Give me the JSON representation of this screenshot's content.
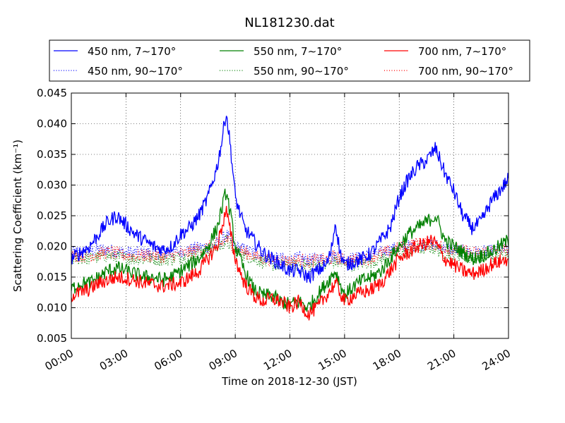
{
  "chart_data": {
    "type": "line",
    "title": "NL181230.dat",
    "xlabel": "Time on 2018-12-30 (JST)",
    "ylabel": "Scattering Coefficient (km⁻¹)",
    "xlim": [
      0,
      24
    ],
    "ylim": [
      0.005,
      0.045
    ],
    "xticks": [
      0,
      3,
      6,
      9,
      12,
      15,
      18,
      21,
      24
    ],
    "xtick_labels": [
      "00:00",
      "03:00",
      "06:00",
      "09:00",
      "12:00",
      "15:00",
      "18:00",
      "21:00",
      "24:00"
    ],
    "yticks": [
      0.005,
      0.01,
      0.015,
      0.02,
      0.025,
      0.03,
      0.035,
      0.04,
      0.045
    ],
    "ytick_labels": [
      "0.005",
      "0.010",
      "0.015",
      "0.020",
      "0.025",
      "0.030",
      "0.035",
      "0.040",
      "0.045"
    ],
    "grid": true,
    "legend_position": "top",
    "x": [
      0,
      0.5,
      1,
      1.5,
      2,
      2.5,
      3,
      3.5,
      4,
      4.5,
      5,
      5.5,
      6,
      6.5,
      7,
      7.5,
      8,
      8.25,
      8.5,
      8.75,
      9,
      9.5,
      10,
      10.5,
      11,
      11.5,
      12,
      12.5,
      13,
      13.5,
      14,
      14.25,
      14.5,
      14.75,
      15,
      15.5,
      16,
      16.5,
      17,
      17.5,
      18,
      18.5,
      19,
      19.5,
      19.75,
      20,
      20.5,
      21,
      21.5,
      22,
      22.5,
      23,
      23.5,
      24
    ],
    "series": [
      {
        "name": "450 nm, 7∼170°",
        "color": "#0000ff",
        "dash": "solid",
        "values": [
          0.018,
          0.019,
          0.02,
          0.022,
          0.024,
          0.025,
          0.0235,
          0.022,
          0.021,
          0.02,
          0.0195,
          0.02,
          0.022,
          0.023,
          0.025,
          0.028,
          0.033,
          0.037,
          0.042,
          0.036,
          0.028,
          0.023,
          0.021,
          0.019,
          0.018,
          0.017,
          0.016,
          0.016,
          0.015,
          0.016,
          0.017,
          0.019,
          0.024,
          0.019,
          0.017,
          0.0175,
          0.018,
          0.019,
          0.021,
          0.023,
          0.028,
          0.031,
          0.033,
          0.034,
          0.035,
          0.036,
          0.032,
          0.029,
          0.025,
          0.023,
          0.024,
          0.027,
          0.029,
          0.031
        ]
      },
      {
        "name": "450 nm, 90∼170°",
        "color": "#0000ff",
        "dash": "dotted",
        "values": [
          0.019,
          0.019,
          0.0192,
          0.0195,
          0.0195,
          0.0192,
          0.019,
          0.019,
          0.019,
          0.019,
          0.0188,
          0.019,
          0.0192,
          0.0195,
          0.0198,
          0.02,
          0.0205,
          0.021,
          0.022,
          0.021,
          0.02,
          0.0195,
          0.019,
          0.0185,
          0.018,
          0.018,
          0.0178,
          0.018,
          0.0178,
          0.018,
          0.018,
          0.0182,
          0.0185,
          0.018,
          0.018,
          0.018,
          0.0182,
          0.0185,
          0.019,
          0.0195,
          0.0198,
          0.02,
          0.0202,
          0.0205,
          0.0205,
          0.0202,
          0.0198,
          0.0195,
          0.0192,
          0.019,
          0.019,
          0.0192,
          0.0195,
          0.0195
        ]
      },
      {
        "name": "550 nm, 7∼170°",
        "color": "#008000",
        "dash": "solid",
        "values": [
          0.013,
          0.014,
          0.014,
          0.015,
          0.016,
          0.0165,
          0.016,
          0.0155,
          0.015,
          0.015,
          0.0145,
          0.015,
          0.016,
          0.017,
          0.018,
          0.02,
          0.023,
          0.026,
          0.029,
          0.025,
          0.02,
          0.016,
          0.013,
          0.012,
          0.012,
          0.011,
          0.0105,
          0.011,
          0.01,
          0.012,
          0.014,
          0.015,
          0.016,
          0.014,
          0.012,
          0.0135,
          0.0145,
          0.015,
          0.016,
          0.018,
          0.02,
          0.022,
          0.023,
          0.024,
          0.0245,
          0.025,
          0.021,
          0.02,
          0.019,
          0.018,
          0.0185,
          0.019,
          0.02,
          0.021
        ]
      },
      {
        "name": "550 nm, 90∼170°",
        "color": "#008000",
        "dash": "dotted",
        "values": [
          0.018,
          0.018,
          0.018,
          0.0182,
          0.0185,
          0.0182,
          0.018,
          0.018,
          0.018,
          0.018,
          0.0178,
          0.018,
          0.0182,
          0.0185,
          0.0188,
          0.0192,
          0.0198,
          0.0202,
          0.021,
          0.02,
          0.019,
          0.0185,
          0.018,
          0.0175,
          0.017,
          0.017,
          0.0168,
          0.017,
          0.0168,
          0.017,
          0.017,
          0.0172,
          0.0175,
          0.0172,
          0.017,
          0.017,
          0.0172,
          0.0175,
          0.018,
          0.0185,
          0.019,
          0.0192,
          0.0195,
          0.0198,
          0.0198,
          0.0195,
          0.019,
          0.0188,
          0.0185,
          0.0182,
          0.0182,
          0.0185,
          0.0188,
          0.019
        ]
      },
      {
        "name": "700 nm, 7∼170°",
        "color": "#ff0000",
        "dash": "solid",
        "values": [
          0.012,
          0.0125,
          0.013,
          0.014,
          0.0145,
          0.015,
          0.0148,
          0.0145,
          0.014,
          0.0138,
          0.0135,
          0.0138,
          0.014,
          0.015,
          0.016,
          0.018,
          0.02,
          0.023,
          0.026,
          0.022,
          0.018,
          0.014,
          0.012,
          0.011,
          0.0115,
          0.011,
          0.01,
          0.011,
          0.009,
          0.01,
          0.012,
          0.013,
          0.014,
          0.0125,
          0.011,
          0.012,
          0.0125,
          0.013,
          0.014,
          0.016,
          0.018,
          0.019,
          0.02,
          0.0205,
          0.021,
          0.0205,
          0.018,
          0.017,
          0.016,
          0.0155,
          0.016,
          0.017,
          0.0175,
          0.018
        ]
      },
      {
        "name": "700 nm, 90∼170°",
        "color": "#ff0000",
        "dash": "dotted",
        "values": [
          0.0185,
          0.0185,
          0.0185,
          0.0188,
          0.019,
          0.0188,
          0.0185,
          0.0185,
          0.0185,
          0.0185,
          0.0183,
          0.0185,
          0.0188,
          0.019,
          0.0195,
          0.0198,
          0.0202,
          0.0205,
          0.0212,
          0.0205,
          0.0195,
          0.019,
          0.0185,
          0.018,
          0.0178,
          0.0178,
          0.0175,
          0.0178,
          0.0175,
          0.0178,
          0.0178,
          0.018,
          0.0183,
          0.018,
          0.0178,
          0.0178,
          0.018,
          0.0183,
          0.0188,
          0.0192,
          0.0198,
          0.0202,
          0.0205,
          0.0205,
          0.0205,
          0.0202,
          0.0198,
          0.0195,
          0.0192,
          0.019,
          0.019,
          0.0192,
          0.0195,
          0.0195
        ]
      }
    ]
  }
}
